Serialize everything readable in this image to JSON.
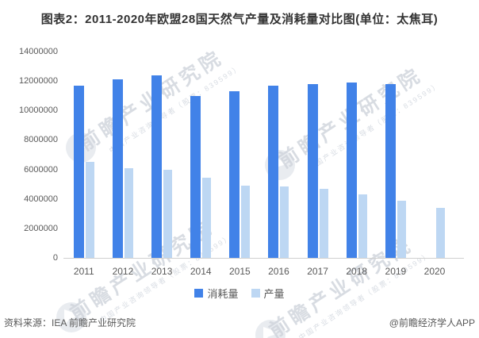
{
  "title": "图表2：2011-2020年欧盟28国天然气产量及消耗量对比图(单位：太焦耳)",
  "chart_data": {
    "type": "bar",
    "title": "图表2：2011-2020年欧盟28国天然气产量及消耗量对比图(单位：太焦耳)",
    "unit": "太焦耳",
    "categories": [
      "2011",
      "2012",
      "2013",
      "2014",
      "2015",
      "2016",
      "2017",
      "2018",
      "2019",
      "2020"
    ],
    "series": [
      {
        "name": "消耗量",
        "key": "consumption",
        "color": "#4182e8",
        "values": [
          11700000,
          12100000,
          12400000,
          11000000,
          11300000,
          11700000,
          11800000,
          11900000,
          11800000,
          null
        ]
      },
      {
        "name": "产量",
        "key": "production",
        "color": "#bdd7f3",
        "values": [
          6500000,
          6100000,
          6000000,
          5450000,
          4900000,
          4850000,
          4700000,
          4300000,
          3900000,
          3400000
        ]
      }
    ],
    "ylim": [
      0,
      14000000
    ],
    "y_ticks": [
      0,
      2000000,
      4000000,
      6000000,
      8000000,
      10000000,
      12000000,
      14000000
    ],
    "grid": false,
    "legend_position": "bottom"
  },
  "footer": {
    "source": "资料来源：IEA 前瞻产业研究院",
    "brand": "@前瞻经济学人APP"
  },
  "watermark": {
    "text": "前瞻产业研究院",
    "subtext": "中国产业咨询领导者（股票：839599）"
  }
}
